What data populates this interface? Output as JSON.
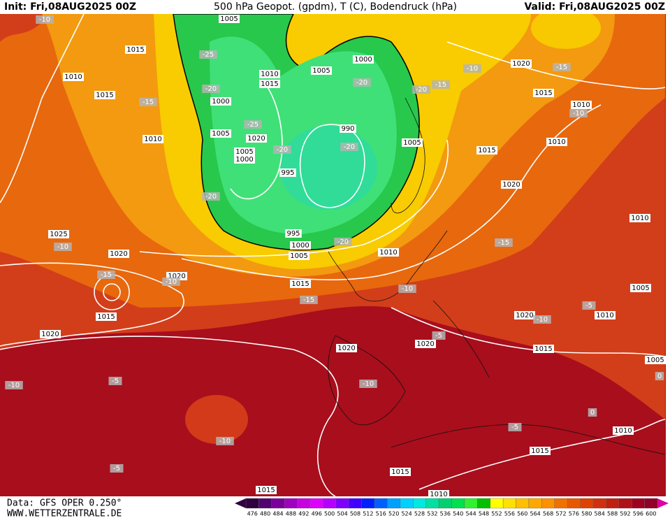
{
  "header": {
    "init": "Init: Fri,08AUG2025 00Z",
    "title": "500 hPa Geopot. (gpdm), T (C), Bodendruck (hPa)",
    "valid": "Valid: Fri,08AUG2025 00Z"
  },
  "footer": {
    "source": "Data: GFS OPER 0.250°",
    "website": "WWW.WETTERZENTRALE.DE"
  },
  "pressure_labels": [
    "1005",
    "1015",
    "1010",
    "1015",
    "1010",
    "1015",
    "1005",
    "1000",
    "1000",
    "1020",
    "1005",
    "1005",
    "1000",
    "990",
    "995",
    "1005",
    "1010",
    "1015",
    "1010",
    "1020",
    "1020",
    "1015",
    "1010",
    "1025",
    "1020",
    "1020",
    "1015",
    "1010",
    "1015",
    "995",
    "1000",
    "1005",
    "1020",
    "1020",
    "1020",
    "1020",
    "1015",
    "1010",
    "1005",
    "1010",
    "1005",
    "1010",
    "1015",
    "1015",
    "1015",
    "1010"
  ],
  "temperature_labels": [
    "-10",
    "-25",
    "-20",
    "-15",
    "-25",
    "-20",
    "-20",
    "-20",
    "-20",
    "-15",
    "-20",
    "-20",
    "-10",
    "-15",
    "-10",
    "-10",
    "-15",
    "-10",
    "-15",
    "-10",
    "-15",
    "-10",
    "-5",
    "-5",
    "-10",
    "-5",
    "-10",
    "-10",
    "-5",
    "-5",
    "0",
    "0"
  ],
  "colorbar_labels": [
    "476",
    "480",
    "484",
    "488",
    "492",
    "496",
    "500",
    "504",
    "508",
    "512",
    "516",
    "520",
    "524",
    "528",
    "532",
    "536",
    "540",
    "544",
    "548",
    "552",
    "556",
    "560",
    "564",
    "568",
    "572",
    "576",
    "580",
    "584",
    "588",
    "592",
    "596",
    "600"
  ]
}
